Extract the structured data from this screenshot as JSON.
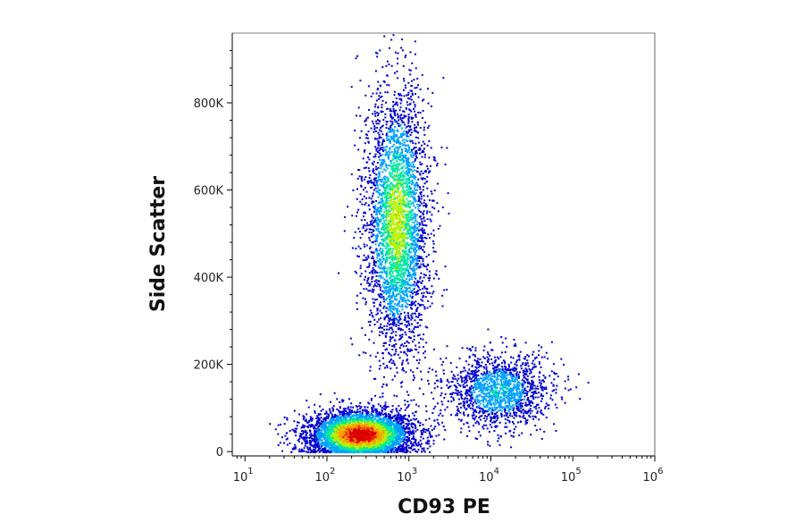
{
  "chart_data": {
    "type": "scatter",
    "subtype": "flow-cytometry density dot plot",
    "xlabel": "CD93 PE",
    "ylabel": "Side Scatter",
    "x_scale": "log",
    "xlim": [
      7,
      1000000
    ],
    "ylim": [
      -10000,
      960000
    ],
    "x_ticks": [
      {
        "value": 10,
        "base": "10",
        "exp": "1"
      },
      {
        "value": 100,
        "base": "10",
        "exp": "2"
      },
      {
        "value": 1000,
        "base": "10",
        "exp": "3"
      },
      {
        "value": 10000,
        "base": "10",
        "exp": "4"
      },
      {
        "value": 100000,
        "base": "10",
        "exp": "5"
      },
      {
        "value": 1000000,
        "base": "10",
        "exp": "6"
      }
    ],
    "y_ticks": [
      {
        "value": 0,
        "label": "0"
      },
      {
        "value": 200000,
        "label": "200K"
      },
      {
        "value": 400000,
        "label": "400K"
      },
      {
        "value": 600000,
        "label": "600K"
      },
      {
        "value": 800000,
        "label": "800K"
      }
    ],
    "grid": false,
    "colormap": [
      "#0000cc",
      "#00a0ff",
      "#00e8a0",
      "#b8f000",
      "#ff9900",
      "#dd0000"
    ],
    "populations": [
      {
        "center_x": 250,
        "center_y": 40000,
        "spread_log10_x": 0.28,
        "spread_y": 25000,
        "events": 4500,
        "peak_density": 1.0
      },
      {
        "center_x": 700,
        "center_y": 530000,
        "spread_log10_x": 0.17,
        "spread_y": 140000,
        "events": 3500,
        "peak_density": 0.55
      },
      {
        "center_x": 12000,
        "center_y": 140000,
        "spread_log10_x": 0.28,
        "spread_y": 40000,
        "events": 1500,
        "peak_density": 0.3
      }
    ]
  }
}
